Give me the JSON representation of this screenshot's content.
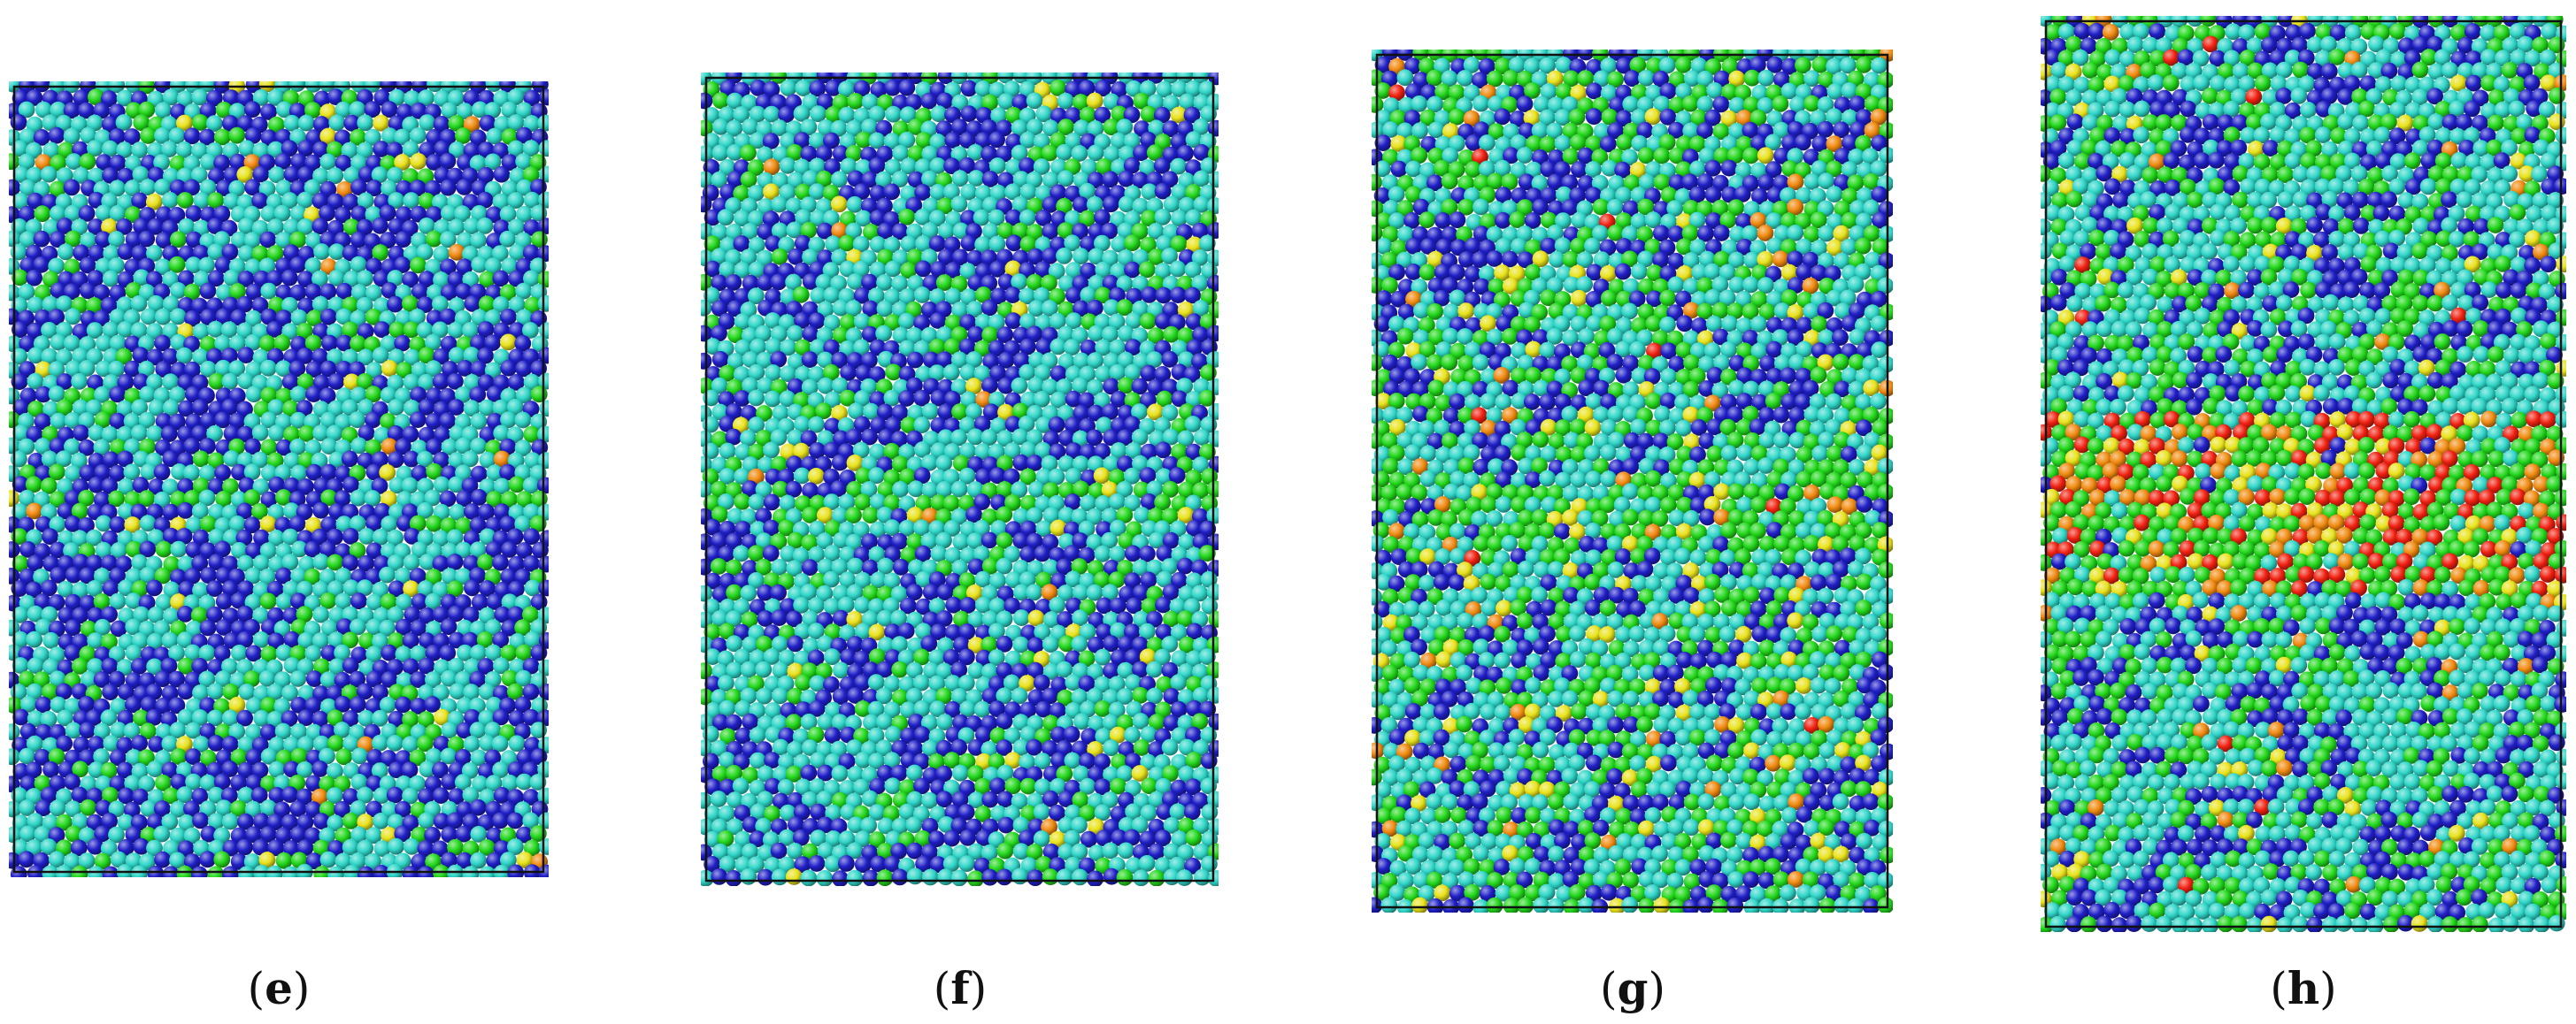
{
  "panels": [
    {
      "id": "e",
      "label": "e",
      "band": "none",
      "palette": {
        "deep": 0.56,
        "cyan": 0.3,
        "green": 0.12,
        "yellow": 0.015,
        "orange": 0.005,
        "red": 0.0
      }
    },
    {
      "id": "f",
      "label": "f",
      "band": "faint",
      "palette": {
        "deep": 0.42,
        "cyan": 0.4,
        "green": 0.15,
        "yellow": 0.025,
        "orange": 0.005,
        "red": 0.0
      }
    },
    {
      "id": "g",
      "label": "g",
      "band": "moderate",
      "palette": {
        "deep": 0.3,
        "cyan": 0.32,
        "green": 0.3,
        "yellow": 0.05,
        "orange": 0.025,
        "red": 0.005
      }
    },
    {
      "id": "h",
      "label": "h",
      "band": "strong",
      "palette": {
        "deep": 0.25,
        "cyan": 0.4,
        "green": 0.3,
        "yellow": 0.03,
        "orange": 0.015,
        "red": 0.005
      }
    }
  ],
  "colors": {
    "deep": "#1f1fc8",
    "cyan": "#2fd6c8",
    "green": "#22d81c",
    "yellow": "#e8e21a",
    "orange": "#f08a10",
    "red": "#f02010",
    "frame": "#111111"
  },
  "caption_style": {
    "open": "(",
    "close": ")"
  }
}
